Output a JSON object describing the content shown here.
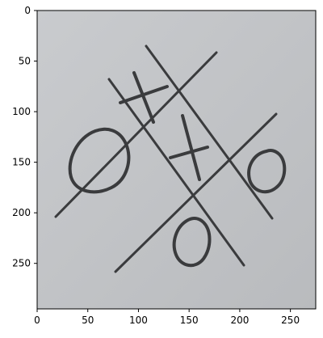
{
  "plot": {
    "x_ticks": [
      "0",
      "50",
      "100",
      "150",
      "200",
      "250"
    ],
    "y_ticks": [
      "0",
      "50",
      "100",
      "150",
      "200",
      "250"
    ],
    "xlim": [
      0,
      275
    ],
    "ylim": [
      295,
      0
    ]
  },
  "board": {
    "description_marks": [
      "X",
      "O",
      "X",
      "O",
      "O"
    ],
    "paper_color": "#c3c5c8",
    "ink_color": "#3a3b3d"
  }
}
